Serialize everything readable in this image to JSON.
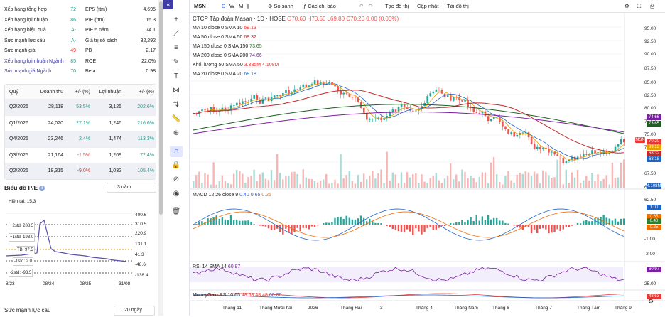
{
  "stats": [
    {
      "l1": "Xếp hạng tổng hợp",
      "v1": "72",
      "v1c": "#2a9d8f",
      "l2": "EPS (ttm)",
      "v2": "4,695"
    },
    {
      "l1": "Xếp hạng lợi nhuận",
      "v1": "86",
      "v1c": "#2a9d8f",
      "l2": "P/E (ttm)",
      "v2": "15.3"
    },
    {
      "l1": "Xếp hạng hiệu quả",
      "v1": "A-",
      "v1c": "#2a9d8f",
      "l2": "P/E 5 năm",
      "v2": "74.1"
    },
    {
      "l1": "Sức mạnh lực cầu",
      "v1": "A-",
      "v1c": "#2a9d8f",
      "l2": "Giá trị sổ sách",
      "v2": "32,292"
    },
    {
      "l1": "Sức mạnh giá",
      "v1": "49",
      "v1c": "#e53935",
      "l2": "PB",
      "v2": "2.17"
    },
    {
      "l1": "Xếp hạng lợi nhuận Ngành",
      "v1": "85",
      "v1c": "#2a9d8f",
      "l2": "ROE",
      "v2": "22.0%",
      "l1link": true
    },
    {
      "l1": "Sức mạnh giá Ngành",
      "v1": "70",
      "v1c": "#2a9d8f",
      "l2": "Beta",
      "v2": "0.98",
      "l1link": true
    }
  ],
  "table": {
    "headers": [
      "Quý",
      "Doanh thu",
      "+/- (%)",
      "Lợi nhuận",
      "+/- (%)"
    ],
    "rows": [
      [
        "Q2/2026",
        "28,118",
        "53.5%",
        "3,125",
        "202.6%"
      ],
      [
        "Q1/2026",
        "24,020",
        "27.1%",
        "1,246",
        "216.6%"
      ],
      [
        "Q4/2025",
        "23,246",
        "2.4%",
        "1,474",
        "113.3%"
      ],
      [
        "Q3/2025",
        "21,164",
        "-1.5%",
        "1,209",
        "72.4%"
      ],
      [
        "Q2/2025",
        "18,315",
        "-9.0%",
        "1,032",
        "105.4%"
      ]
    ]
  },
  "pe": {
    "title": "Biểu đồ P/E",
    "info": "i",
    "range": "3 năm",
    "current": "Hiện tại: 15.3",
    "labels": {
      "p2": "+2std: 288.5",
      "p1": "+1std: 193.0",
      "avg": "TB: 97.5",
      "m1": "-1std: 2.0",
      "m2": "-2std: -93.5"
    },
    "yticks": [
      "400.6",
      "310.5",
      "220.9",
      "131.1",
      "41.3",
      "-48.6",
      "-138.4"
    ],
    "xticks": [
      "8/23",
      "08/24",
      "08/25",
      "31/08"
    ]
  },
  "bottom": {
    "label": "Sức mạnh lực cầu",
    "range": "20 ngày"
  },
  "topbar": {
    "symbol": "MSN",
    "d": "D",
    "w": "W",
    "m": "M",
    "compare": "So sánh",
    "indicators": "Các chỉ báo",
    "create": "Tạo đồ thị",
    "update": "Cập nhật",
    "load": "Tải đồ thị"
  },
  "legend": {
    "title": "CTCP Tập đoàn Masan · 1D · HOSE",
    "ohlc": "O70.60 H70.60 L69.80 C70.20 0.00 (0.00%)",
    "ma": [
      {
        "t": "MA 10 close 0 SMA 10",
        "v": "69.13",
        "c": "#e53935"
      },
      {
        "t": "MA 50 close 0 SMA 50",
        "v": "68.32",
        "c": "#c62828"
      },
      {
        "t": "MA 150 close 0 SMA 150",
        "v": "73.65",
        "c": "#1b5e20"
      },
      {
        "t": "MA 200 close 0 SMA 200",
        "v": "74.66",
        "c": "#7b1fa2"
      },
      {
        "t": "Khối lượng 50 SMA 50",
        "v": "3.335M  4.108M",
        "c": "#e53935"
      },
      {
        "t": "MA 20 close 0 SMA 20",
        "v": "68.18",
        "c": "#1e63c7"
      }
    ]
  },
  "price_axis": [
    "95.00",
    "92.50",
    "90.00",
    "87.50",
    "85.00",
    "82.50",
    "80.00",
    "77.50",
    "75.00",
    "72.50",
    "67.50",
    "65.00",
    "62.50"
  ],
  "price_tags": [
    {
      "v": "74.66",
      "c": "#7b1fa2",
      "y": 143
    },
    {
      "v": "73.65",
      "c": "#1b5e20",
      "y": 152
    },
    {
      "v": "MSN",
      "c": "#e53935",
      "y": 175
    },
    {
      "v": "70.20",
      "c": "#e53935",
      "y": 177
    },
    {
      "v": "69.13",
      "c": "#e6a100",
      "y": 185
    },
    {
      "v": "68.32",
      "c": "#c62828",
      "y": 194
    },
    {
      "v": "68.18",
      "c": "#1e63c7",
      "y": 202
    },
    {
      "v": "4.108M",
      "c": "#1e63c7",
      "y": 240
    }
  ],
  "macd": {
    "label": "MACD 12 26 close 9",
    "v1": "0.40",
    "v2": "0.65",
    "v3": "0.25",
    "ticks": [
      "1.00",
      "0.65",
      "0.40",
      "0.25",
      "-1.00",
      "-2.00"
    ]
  },
  "rsi": {
    "label": "RSI 14 SMA 14",
    "v": "60.97",
    "ticks": [
      "60.97",
      "25.00"
    ]
  },
  "mg": {
    "label": "MoneyGain RS 10 65",
    "v1": "48.53",
    "v2": "48.48",
    "v3": "60.00",
    "tick": "48.53"
  },
  "time_axis": [
    "Tháng 11",
    "Tháng Mười hai",
    "2026",
    "Tháng Hai",
    "3",
    "Tháng 4",
    "Tháng Năm",
    "Tháng 6",
    "Tháng 7",
    "Tháng Tám",
    "Tháng 9"
  ],
  "colors": {
    "up": "#26a69a",
    "down": "#ef5350",
    "accent": "#2962ff"
  }
}
